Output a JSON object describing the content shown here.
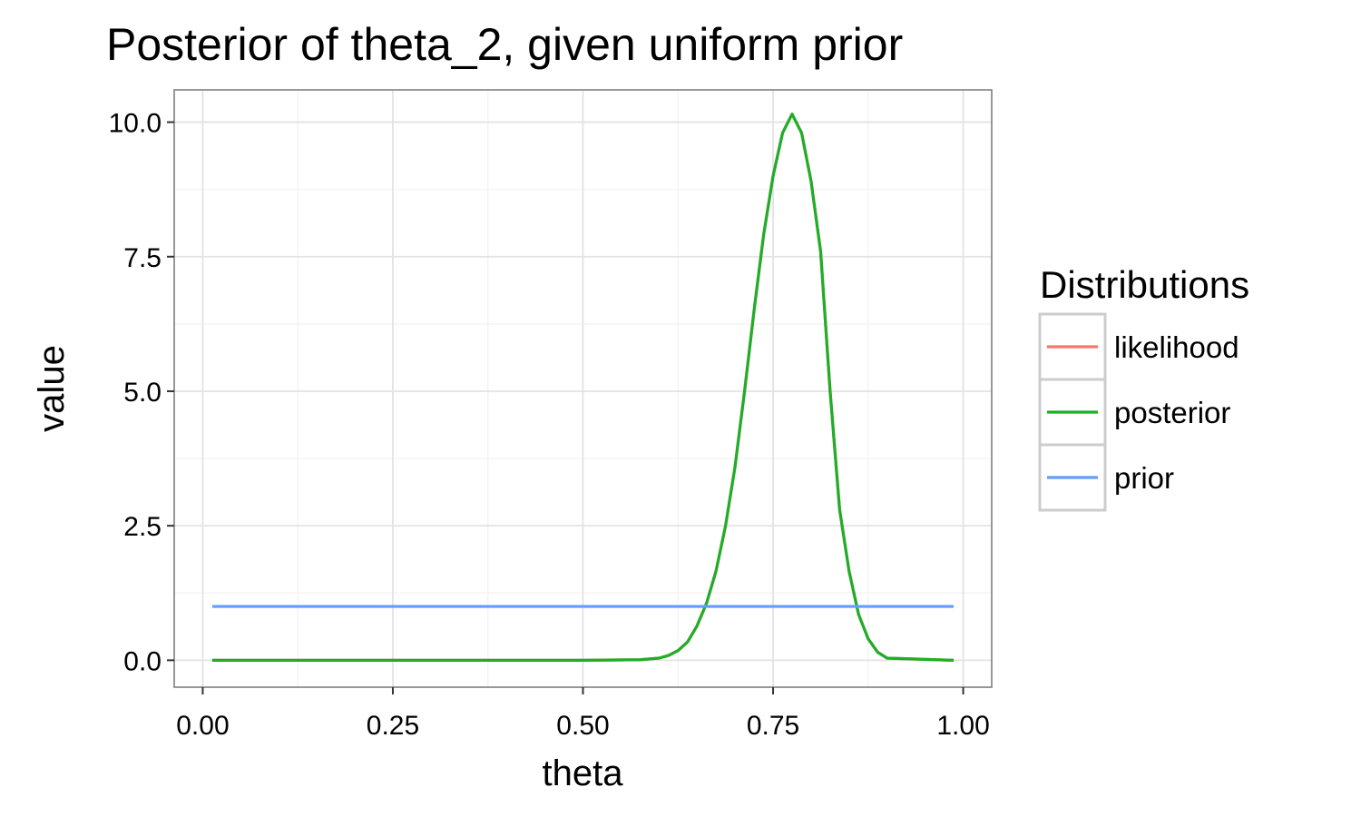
{
  "chart_data": {
    "type": "line",
    "title": "Posterior of theta_2, given uniform prior",
    "xlabel": "theta",
    "ylabel": "value",
    "xlim": [
      -0.0375,
      1.0375
    ],
    "ylim": [
      -0.5,
      10.6
    ],
    "xticks": [
      0.0,
      0.25,
      0.5,
      0.75,
      1.0
    ],
    "xtick_labels": [
      "0.00",
      "0.25",
      "0.50",
      "0.75",
      "1.00"
    ],
    "yticks": [
      0.0,
      2.5,
      5.0,
      7.5,
      10.0
    ],
    "ytick_labels": [
      "0.0",
      "2.5",
      "5.0",
      "7.5",
      "10.0"
    ],
    "grid": true,
    "legend": {
      "title": "Distributions",
      "position": "right",
      "entries": [
        "likelihood",
        "posterior",
        "prior"
      ]
    },
    "series": [
      {
        "name": "likelihood",
        "color": "#F8766D",
        "x": [
          0.0125,
          0.5,
          0.575,
          0.6,
          0.6125,
          0.625,
          0.6375,
          0.65,
          0.6625,
          0.675,
          0.6875,
          0.7,
          0.7125,
          0.725,
          0.7375,
          0.75,
          0.7625,
          0.775,
          0.7875,
          0.8,
          0.8125,
          0.825,
          0.8375,
          0.85,
          0.8625,
          0.875,
          0.8875,
          0.9,
          0.9875
        ],
        "y": [
          0.0,
          0.0,
          0.01,
          0.04,
          0.09,
          0.18,
          0.34,
          0.64,
          1.06,
          1.66,
          2.5,
          3.6,
          5.0,
          6.5,
          7.9,
          9.0,
          9.8,
          10.15,
          9.8,
          8.9,
          7.6,
          5.0,
          2.8,
          1.65,
          0.85,
          0.4,
          0.15,
          0.04,
          0.0
        ]
      },
      {
        "name": "posterior",
        "color": "#1FAE28",
        "x": [
          0.0125,
          0.5,
          0.575,
          0.6,
          0.6125,
          0.625,
          0.6375,
          0.65,
          0.6625,
          0.675,
          0.6875,
          0.7,
          0.7125,
          0.725,
          0.7375,
          0.75,
          0.7625,
          0.775,
          0.7875,
          0.8,
          0.8125,
          0.825,
          0.8375,
          0.85,
          0.8625,
          0.875,
          0.8875,
          0.9,
          0.9875
        ],
        "y": [
          0.0,
          0.0,
          0.01,
          0.04,
          0.09,
          0.18,
          0.34,
          0.64,
          1.06,
          1.66,
          2.5,
          3.6,
          5.0,
          6.5,
          7.9,
          9.0,
          9.8,
          10.15,
          9.8,
          8.9,
          7.6,
          5.0,
          2.8,
          1.65,
          0.85,
          0.4,
          0.15,
          0.04,
          0.0
        ]
      },
      {
        "name": "prior",
        "color": "#619CFF",
        "x": [
          0.0125,
          0.9875
        ],
        "y": [
          1.0,
          1.0
        ]
      }
    ]
  }
}
